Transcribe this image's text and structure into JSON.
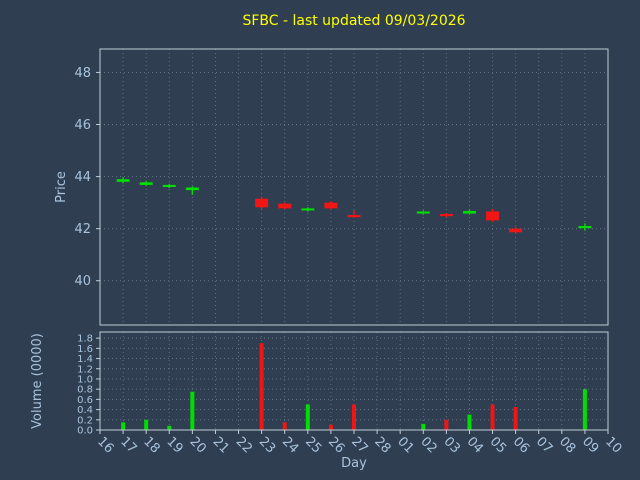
{
  "figure": {
    "title": "SFBC - last updated 09/03/2026",
    "price_axis_label": "Price",
    "volume_axis_label": "Volume (0000)",
    "x_axis_label": "Day"
  },
  "colors": {
    "background": "#2f3f51",
    "title": "#ffff00",
    "tick_label": "#a9c2dc",
    "grid": "#64788a",
    "spine": "#c2cdd7",
    "up": "#00dd00",
    "down": "#f11616"
  },
  "chart_data": {
    "type": "candlestick",
    "title": "SFBC - last updated 09/03/2026",
    "xlabel": "Day",
    "ylabel_price": "Price",
    "ylabel_volume": "Volume (0000)",
    "legend": "none",
    "grid": "dotted",
    "x_categories": [
      "16",
      "17",
      "18",
      "19",
      "20",
      "21",
      "22",
      "23",
      "24",
      "25",
      "26",
      "27",
      "28",
      "01",
      "02",
      "03",
      "04",
      "05",
      "06",
      "07",
      "08",
      "09",
      "10"
    ],
    "price_ticks": [
      40,
      42,
      44,
      46,
      48
    ],
    "price_range": [
      38.3,
      48.9
    ],
    "volume_ticks": [
      0.0,
      0.2,
      0.4,
      0.6,
      0.8,
      1.0,
      1.2,
      1.4,
      1.6,
      1.8
    ],
    "volume_range": [
      0,
      1.92
    ],
    "candles": [
      {
        "day": "17",
        "open": 43.8,
        "high": 43.98,
        "low": 43.74,
        "close": 43.9,
        "volume": 0.15
      },
      {
        "day": "18",
        "open": 43.68,
        "high": 43.84,
        "low": 43.64,
        "close": 43.78,
        "volume": 0.2
      },
      {
        "day": "19",
        "open": 43.6,
        "high": 43.72,
        "low": 43.56,
        "close": 43.68,
        "volume": 0.08
      },
      {
        "day": "20",
        "open": 43.48,
        "high": 43.62,
        "low": 43.3,
        "close": 43.58,
        "volume": 0.75
      },
      {
        "day": "23",
        "open": 43.15,
        "high": 43.22,
        "low": 42.76,
        "close": 42.82,
        "volume": 1.7
      },
      {
        "day": "24",
        "open": 42.96,
        "high": 43.0,
        "low": 42.74,
        "close": 42.78,
        "volume": 0.15
      },
      {
        "day": "25",
        "open": 42.7,
        "high": 42.82,
        "low": 42.66,
        "close": 42.78,
        "volume": 0.5
      },
      {
        "day": "26",
        "open": 43.0,
        "high": 43.06,
        "low": 42.74,
        "close": 42.78,
        "volume": 0.1
      },
      {
        "day": "27",
        "open": 42.52,
        "high": 42.7,
        "low": 42.42,
        "close": 42.44,
        "volume": 0.5
      },
      {
        "day": "02",
        "open": 42.58,
        "high": 42.7,
        "low": 42.54,
        "close": 42.66,
        "volume": 0.12
      },
      {
        "day": "03",
        "open": 42.56,
        "high": 42.6,
        "low": 42.44,
        "close": 42.48,
        "volume": 0.2
      },
      {
        "day": "04",
        "open": 42.58,
        "high": 42.72,
        "low": 42.54,
        "close": 42.68,
        "volume": 0.3
      },
      {
        "day": "05",
        "open": 42.66,
        "high": 42.76,
        "low": 42.26,
        "close": 42.32,
        "volume": 0.5
      },
      {
        "day": "06",
        "open": 42.0,
        "high": 42.06,
        "low": 41.8,
        "close": 41.86,
        "volume": 0.45
      },
      {
        "day": "09",
        "open": 42.02,
        "high": 42.2,
        "low": 41.92,
        "close": 42.1,
        "volume": 0.8
      }
    ]
  }
}
